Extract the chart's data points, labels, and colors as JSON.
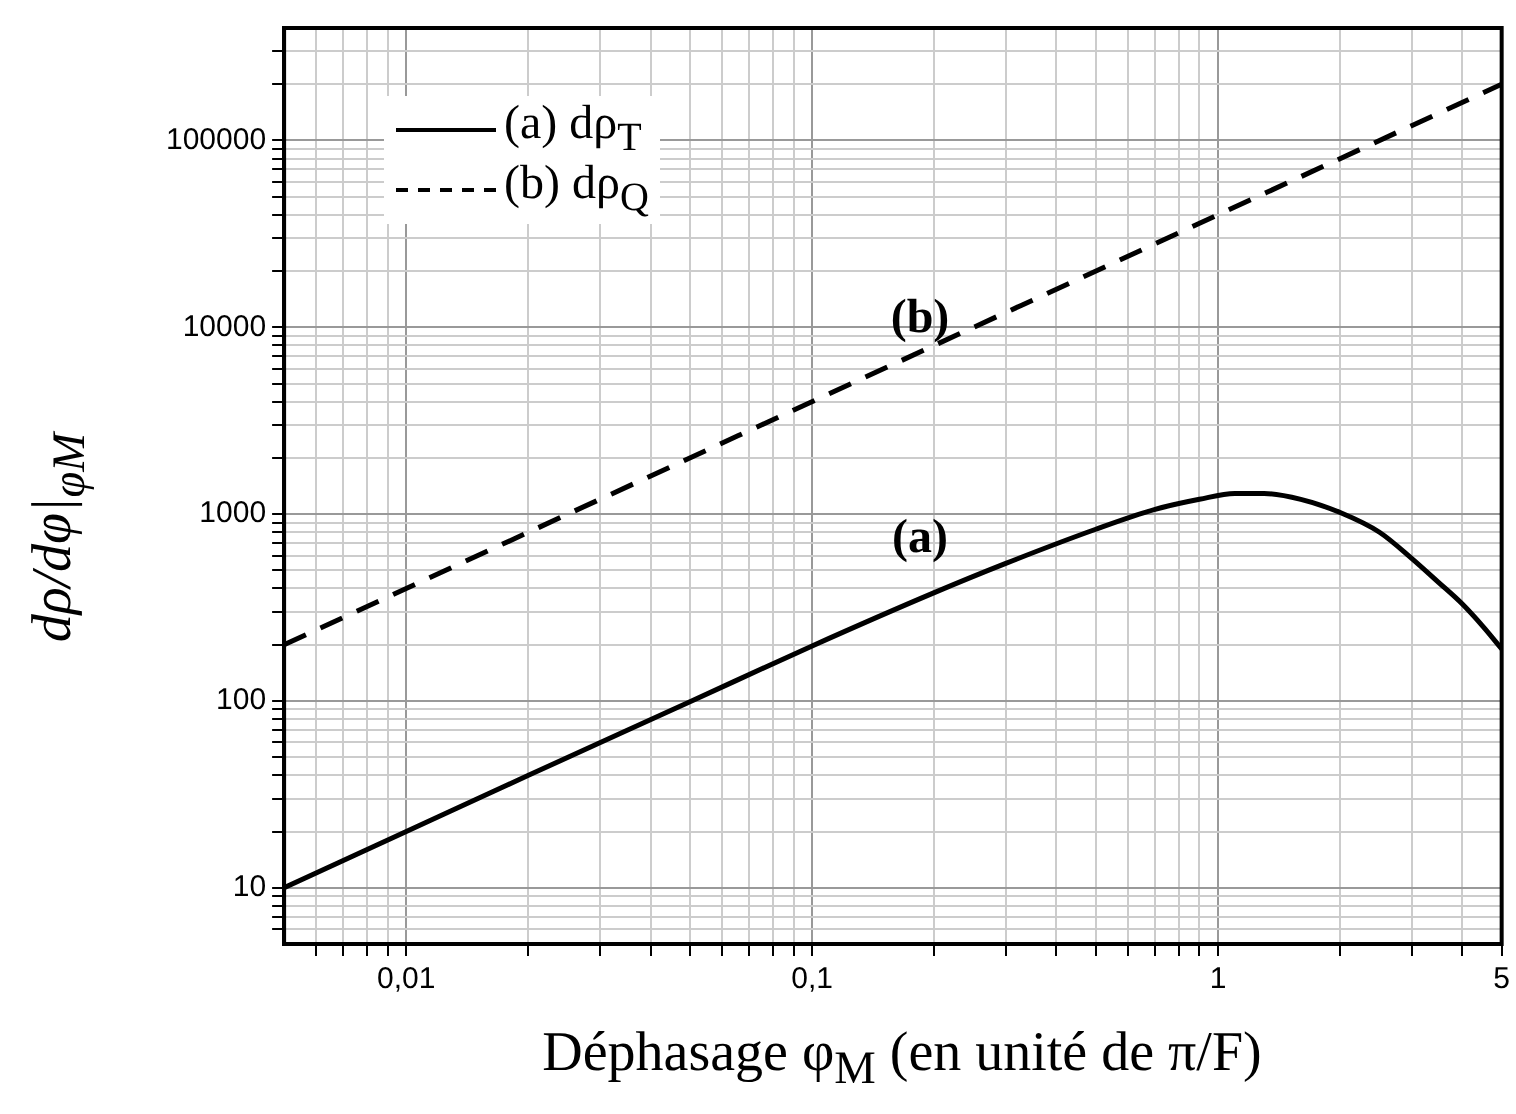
{
  "chart_data": {
    "type": "line",
    "xlabel": "Déphasage φ$_{M}$ (en unité de π/F)",
    "ylabel": "dρ/dφ|$_{φM}$",
    "log": "xy",
    "grid": true,
    "legend": "top left",
    "marker": "none",
    "xlim": [
      0.005,
      5
    ],
    "xticks": [
      {
        "value": 0.006,
        "label": null
      },
      {
        "value": 0.007,
        "label": null
      },
      {
        "value": 0.008,
        "label": null
      },
      {
        "value": 0.009,
        "label": null
      },
      {
        "value": 0.01,
        "label": "0,01"
      },
      {
        "value": 0.02,
        "label": null
      },
      {
        "value": 0.03,
        "label": null
      },
      {
        "value": 0.04,
        "label": null
      },
      {
        "value": 0.05,
        "label": null
      },
      {
        "value": 0.06,
        "label": null
      },
      {
        "value": 0.07,
        "label": null
      },
      {
        "value": 0.08,
        "label": null
      },
      {
        "value": 0.09,
        "label": null
      },
      {
        "value": 0.1,
        "label": "0,1"
      },
      {
        "value": 0.2,
        "label": null
      },
      {
        "value": 0.3,
        "label": null
      },
      {
        "value": 0.4,
        "label": null
      },
      {
        "value": 0.5,
        "label": null
      },
      {
        "value": 0.6,
        "label": null
      },
      {
        "value": 0.7,
        "label": null
      },
      {
        "value": 0.8,
        "label": null
      },
      {
        "value": 0.9,
        "label": null
      },
      1,
      {
        "value": 2,
        "label": null
      },
      {
        "value": 3,
        "label": null
      },
      {
        "value": 4,
        "label": null
      },
      5
    ],
    "ylim": [
      5,
      400000
    ],
    "yticks": [
      {
        "value": 6,
        "label": null
      },
      {
        "value": 7,
        "label": null
      },
      {
        "value": 8,
        "label": null
      },
      {
        "value": 9,
        "label": null
      },
      10,
      {
        "value": 20,
        "label": null
      },
      {
        "value": 30,
        "label": null
      },
      {
        "value": 40,
        "label": null
      },
      {
        "value": 50,
        "label": null
      },
      {
        "value": 60,
        "label": null
      },
      {
        "value": 70,
        "label": null
      },
      {
        "value": 80,
        "label": null
      },
      {
        "value": 90,
        "label": null
      },
      100,
      {
        "value": 200,
        "label": null
      },
      {
        "value": 300,
        "label": null
      },
      {
        "value": 400,
        "label": null
      },
      {
        "value": 500,
        "label": null
      },
      {
        "value": 600,
        "label": null
      },
      {
        "value": 700,
        "label": null
      },
      {
        "value": 800,
        "label": null
      },
      {
        "value": 900,
        "label": null
      },
      1000,
      {
        "value": 2000,
        "label": null
      },
      {
        "value": 3000,
        "label": null
      },
      {
        "value": 4000,
        "label": null
      },
      {
        "value": 5000,
        "label": null
      },
      {
        "value": 6000,
        "label": null
      },
      {
        "value": 7000,
        "label": null
      },
      {
        "value": 8000,
        "label": null
      },
      {
        "value": 9000,
        "label": null
      },
      10000,
      {
        "value": 20000,
        "label": null
      },
      {
        "value": 30000,
        "label": null
      },
      {
        "value": 40000,
        "label": null
      },
      {
        "value": 50000,
        "label": null
      },
      {
        "value": 60000,
        "label": null
      },
      {
        "value": 70000,
        "label": null
      },
      {
        "value": 80000,
        "label": null
      },
      {
        "value": 90000,
        "label": null
      },
      100000,
      {
        "value": 200000,
        "label": null
      },
      {
        "value": 300000,
        "label": null
      }
    ],
    "series": [
      {
        "name": "(a) dρ$_{T}$",
        "color": "#000000",
        "line_style": "solid",
        "x": [
          0.005,
          0.01,
          0.02,
          0.05,
          0.1,
          0.2,
          0.3,
          0.5,
          0.7,
          0.9,
          1.1,
          1.3,
          1.6,
          2,
          2.5,
          3,
          3.5,
          4,
          4.5,
          5
        ],
        "values": [
          10,
          20,
          40,
          99,
          197,
          380,
          545,
          830,
          1060,
          1200,
          1290,
          1290,
          1200,
          1020,
          800,
          580,
          430,
          330,
          250,
          190
        ]
      },
      {
        "name": "(b) dρ$_{Q}$",
        "color": "#000000",
        "line_style": "dashed",
        "x": [
          0.005,
          5
        ],
        "values": [
          200,
          200000
        ]
      }
    ],
    "annotations": [
      "(b)",
      "(a)"
    ]
  }
}
